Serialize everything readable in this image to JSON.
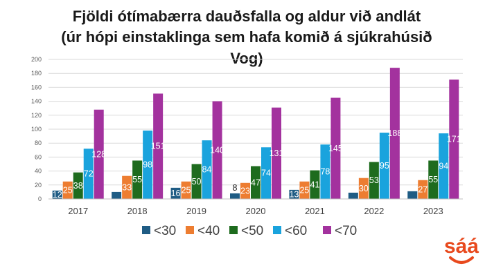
{
  "chart_data": {
    "type": "bar",
    "title_lines": [
      "Fjöldi ótímabærra dauðsfalla og aldur við andlát",
      "(úr hópi einstaklinga sem hafa komið á sjúkrahúsið",
      "Vog)"
    ],
    "categories": [
      "2017",
      "2018",
      "2019",
      "2020",
      "2021",
      "2022",
      "2023"
    ],
    "series": [
      {
        "name": "<30",
        "color": "#1f5c84",
        "values": [
          12,
          10,
          16,
          8,
          13,
          9,
          11
        ],
        "labels": [
          "12",
          "",
          "16",
          "8",
          "13",
          "",
          ""
        ]
      },
      {
        "name": "<40",
        "color": "#ed7d31",
        "values": [
          25,
          33,
          25,
          23,
          25,
          30,
          27
        ],
        "labels": [
          "25",
          "33",
          "25",
          "23",
          "25",
          "30",
          "27"
        ]
      },
      {
        "name": "<50",
        "color": "#1e6b1e",
        "values": [
          38,
          55,
          50,
          47,
          41,
          53,
          55
        ],
        "labels": [
          "38",
          "55",
          "50",
          "47",
          "41",
          "53",
          "55"
        ]
      },
      {
        "name": "<60",
        "color": "#1aa3dd",
        "values": [
          72,
          98,
          84,
          74,
          78,
          95,
          94
        ],
        "labels": [
          "72",
          "98",
          "84",
          "74",
          "78",
          "95",
          "94"
        ]
      },
      {
        "name": "<70",
        "color": "#a3329e",
        "values": [
          128,
          151,
          140,
          131,
          145,
          188,
          171
        ],
        "labels": [
          "128",
          "151",
          "140",
          "131",
          "145",
          "188",
          "171"
        ]
      }
    ],
    "yticks": [
      "0",
      "20",
      "40",
      "60",
      "80",
      "100",
      "120",
      "140",
      "160",
      "180",
      "200"
    ],
    "ylim": [
      0,
      200
    ],
    "grid": true,
    "legend_position": "bottom",
    "xlabel": "",
    "ylabel": ""
  },
  "logo": {
    "text": "sáá",
    "color": "#e8491d"
  }
}
